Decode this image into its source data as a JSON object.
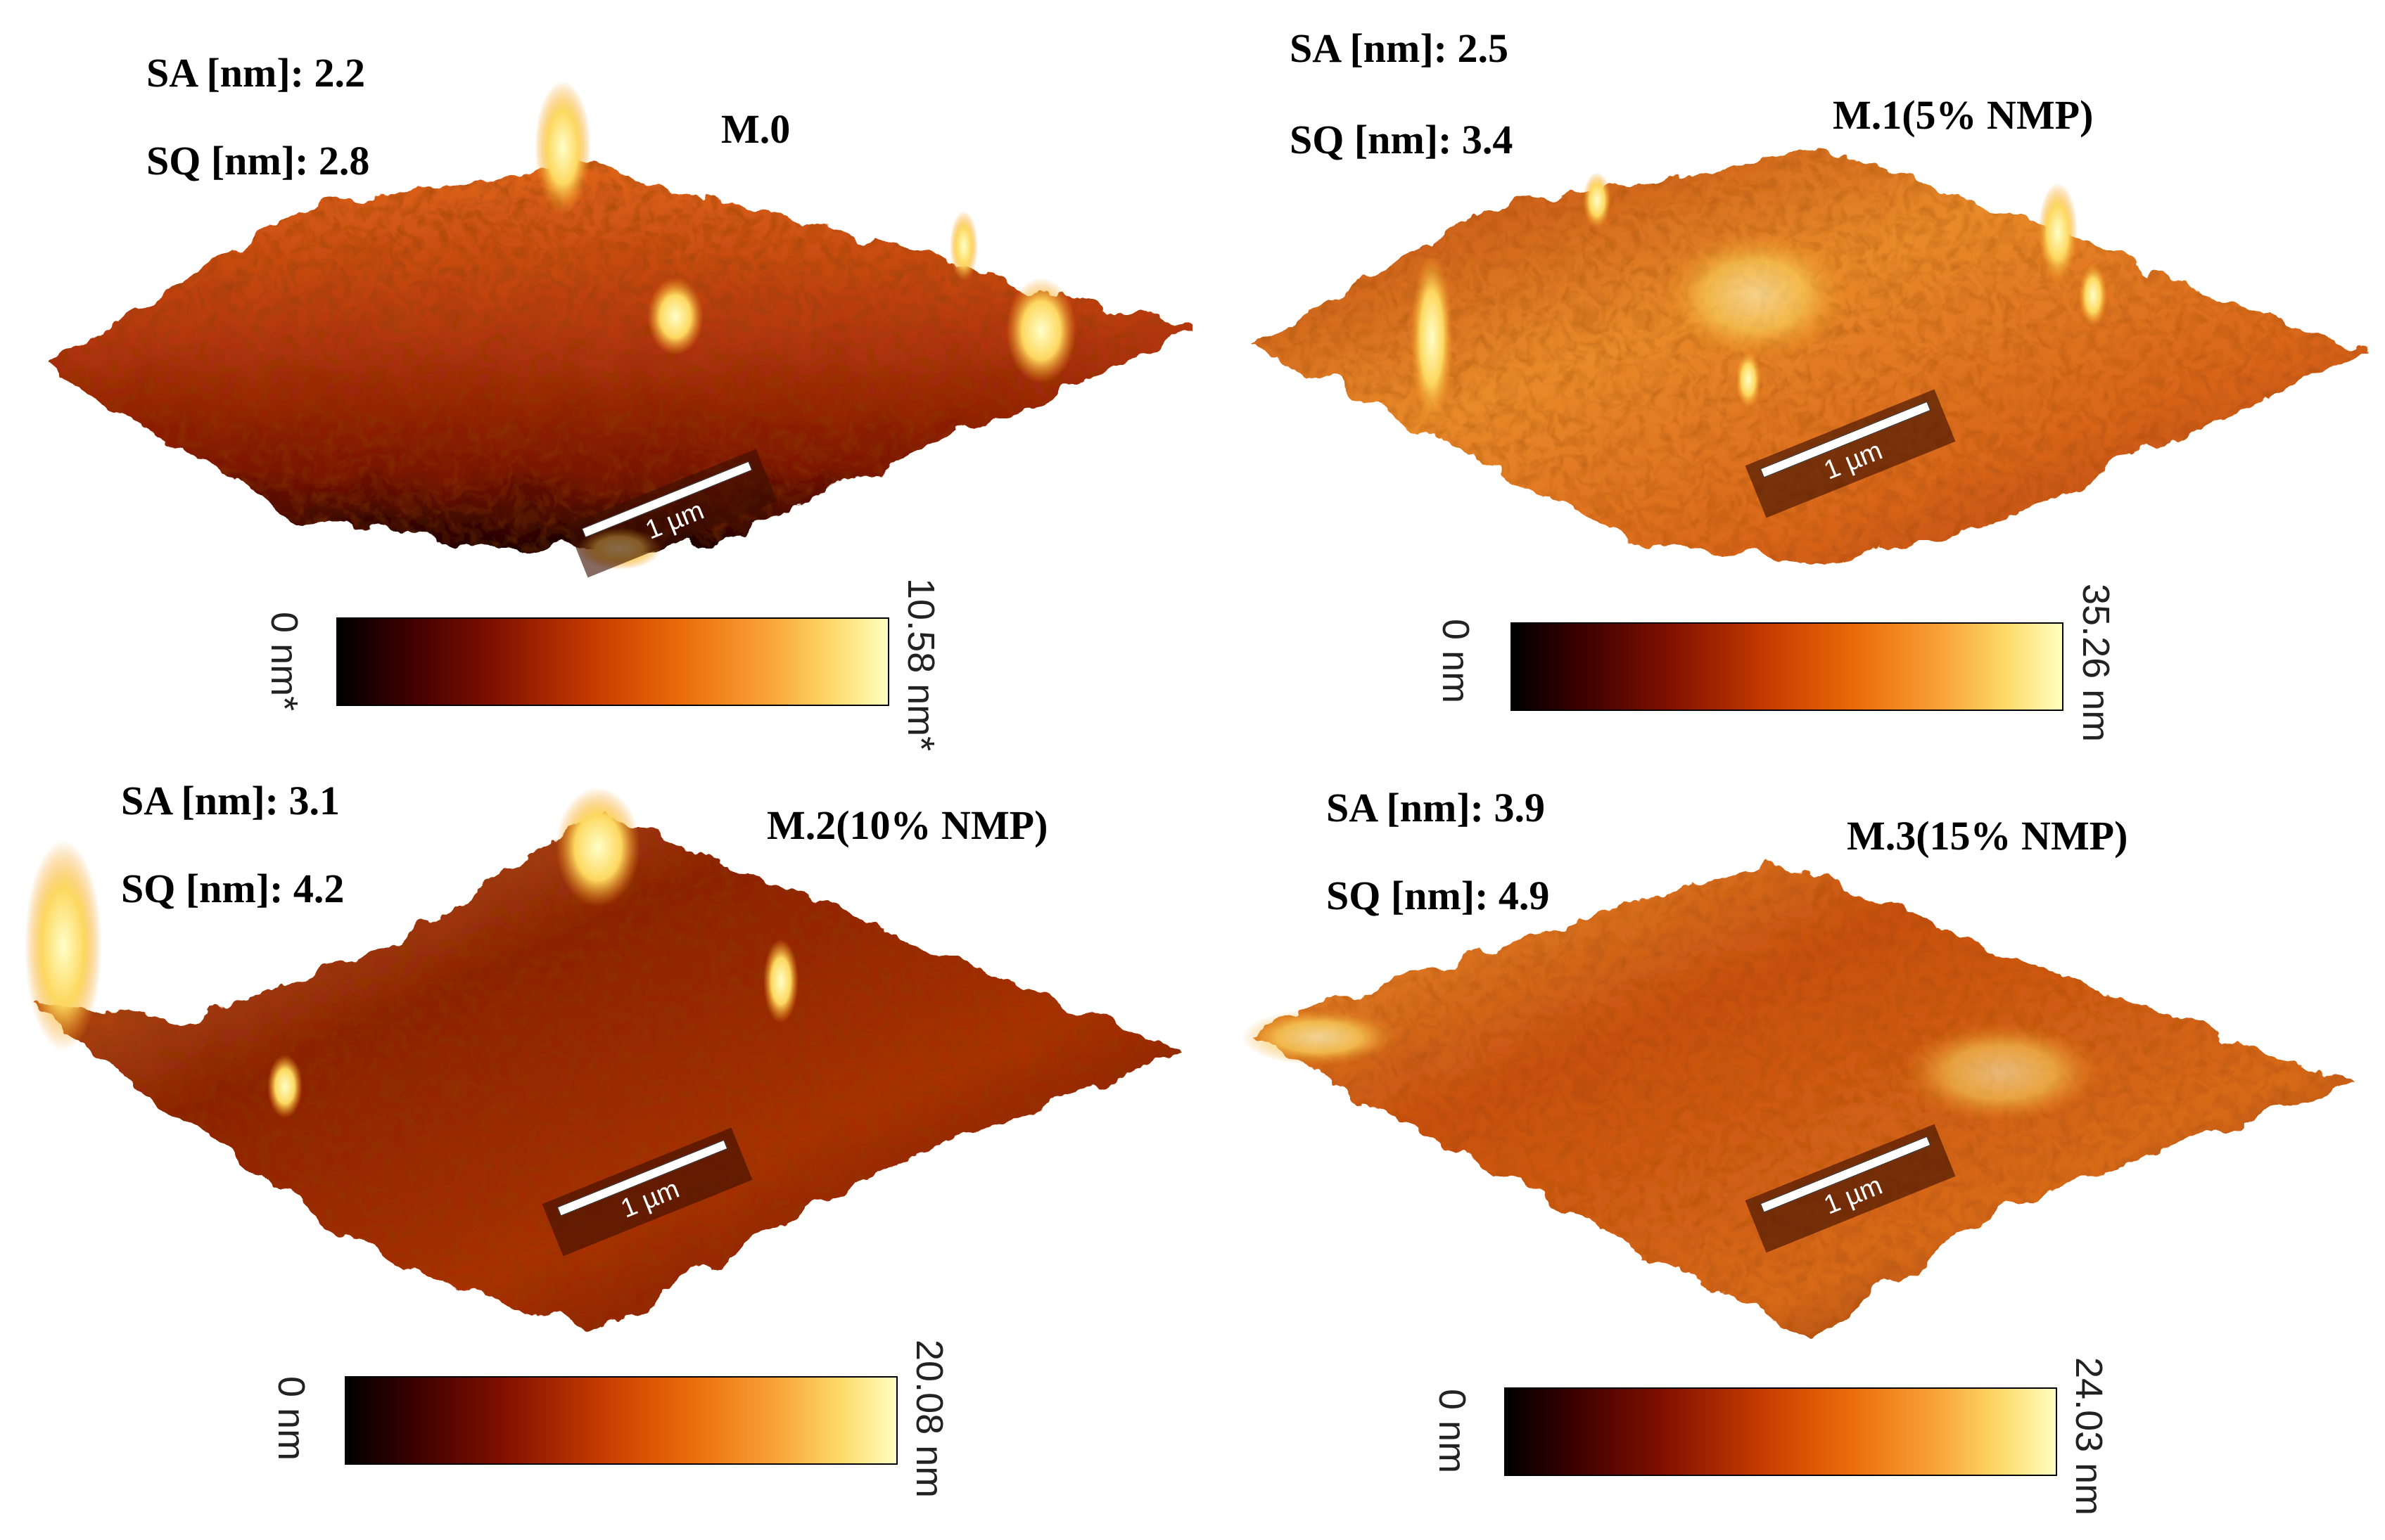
{
  "colorbar_gradient": [
    "#000000",
    "#7e0f00",
    "#c43a00",
    "#f9a236",
    "#ffffc0"
  ],
  "panels": [
    {
      "title": "M.0",
      "sa": "SA [nm]: 2.2",
      "sq": "SQ [nm]: 2.8",
      "scale_label": "1 µm",
      "colorbar_min": "0 nm*",
      "colorbar_max": "10.58 nm*"
    },
    {
      "title": "M.1(5% NMP)",
      "sa": "SA [nm]: 2.5",
      "sq": "SQ [nm]: 3.4",
      "scale_label": "1 µm",
      "colorbar_min": "0 nm",
      "colorbar_max": "35.26 nm"
    },
    {
      "title": "M.2(10% NMP)",
      "sa": "SA [nm]: 3.1",
      "sq": "SQ [nm]: 4.2",
      "scale_label": "1 µm",
      "colorbar_min": "0 nm",
      "colorbar_max": "20.08 nm"
    },
    {
      "title": "M.3(15% NMP)",
      "sa": "SA [nm]: 3.9",
      "sq": "SQ [nm]: 4.9",
      "scale_label": "1 µm",
      "colorbar_min": "0 nm",
      "colorbar_max": "24.03 nm"
    }
  ]
}
